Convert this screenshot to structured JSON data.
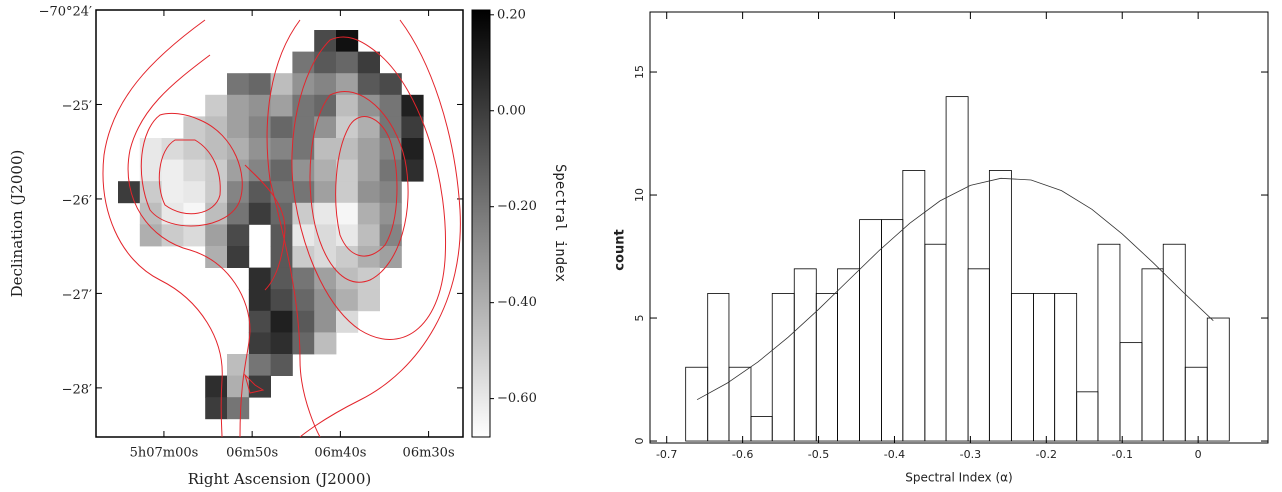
{
  "chart_data": [
    {
      "type": "heatmap",
      "xlabel": "Right Ascension (J2000)",
      "ylabel": "Declination (J2000)",
      "xlim": [
        67.7,
        26.1
      ],
      "xticks": [
        {
          "value": 60,
          "label": "5h07m00s"
        },
        {
          "value": 50,
          "label": "06m50s"
        },
        {
          "value": 40,
          "label": "06m40s"
        },
        {
          "value": 30,
          "label": "06m30s"
        }
      ],
      "ylim": [
        -28.52,
        -24
      ],
      "yticks": [
        {
          "value": -24,
          "label": "−70°24′"
        },
        {
          "value": -25,
          "label": "−25′"
        },
        {
          "value": -26,
          "label": "−26′"
        },
        {
          "value": -27,
          "label": "−27′"
        },
        {
          "value": -28,
          "label": "−28′"
        }
      ],
      "values": [
        [
          null,
          null,
          null,
          null,
          null,
          null,
          null,
          null,
          null,
          -0.05,
          0.15,
          null,
          null,
          null,
          null
        ],
        [
          null,
          null,
          null,
          null,
          null,
          null,
          null,
          null,
          -0.2,
          -0.1,
          -0.15,
          0.0,
          null,
          null,
          null
        ],
        [
          null,
          null,
          null,
          null,
          null,
          -0.2,
          -0.15,
          -0.45,
          -0.3,
          -0.25,
          -0.35,
          -0.1,
          -0.05,
          null,
          null
        ],
        [
          null,
          null,
          null,
          null,
          -0.5,
          -0.35,
          -0.3,
          -0.35,
          -0.2,
          -0.15,
          -0.45,
          -0.3,
          -0.2,
          0.1,
          null
        ],
        [
          null,
          null,
          null,
          -0.5,
          -0.45,
          -0.35,
          -0.25,
          -0.15,
          -0.2,
          -0.3,
          -0.5,
          -0.4,
          -0.2,
          0.0,
          null
        ],
        [
          null,
          -0.6,
          -0.55,
          -0.5,
          -0.45,
          -0.4,
          -0.3,
          -0.25,
          -0.2,
          -0.45,
          -0.45,
          -0.35,
          -0.25,
          0.1,
          null
        ],
        [
          null,
          -0.6,
          -0.62,
          -0.55,
          -0.5,
          -0.35,
          -0.25,
          -0.15,
          -0.3,
          -0.4,
          -0.5,
          -0.35,
          -0.2,
          0.05,
          null
        ],
        [
          0.0,
          -0.5,
          -0.62,
          -0.6,
          -0.5,
          -0.25,
          -0.1,
          -0.2,
          -0.2,
          -0.35,
          -0.5,
          -0.3,
          -0.25,
          null,
          null
        ],
        [
          null,
          -0.45,
          -0.6,
          -0.65,
          -0.45,
          -0.2,
          0.0,
          -0.15,
          -0.5,
          -0.6,
          -0.65,
          -0.4,
          -0.3,
          null,
          null
        ],
        [
          null,
          -0.4,
          -0.5,
          -0.55,
          -0.35,
          -0.05,
          null,
          -0.1,
          -0.6,
          -0.55,
          -0.6,
          -0.45,
          -0.25,
          null,
          null
        ],
        [
          null,
          null,
          null,
          null,
          -0.4,
          0.0,
          null,
          -0.1,
          -0.5,
          -0.55,
          -0.5,
          -0.4,
          -0.35,
          null,
          null
        ],
        [
          null,
          null,
          null,
          null,
          null,
          null,
          0.05,
          -0.1,
          -0.2,
          -0.35,
          -0.45,
          -0.5,
          null,
          null,
          null
        ],
        [
          null,
          null,
          null,
          null,
          null,
          null,
          0.05,
          -0.05,
          -0.15,
          -0.3,
          -0.4,
          -0.5,
          null,
          null,
          null
        ],
        [
          null,
          null,
          null,
          null,
          null,
          null,
          -0.05,
          0.1,
          -0.1,
          -0.3,
          -0.55,
          null,
          null,
          null,
          null
        ],
        [
          null,
          null,
          null,
          null,
          null,
          null,
          0.0,
          0.05,
          -0.15,
          -0.45,
          null,
          null,
          null,
          null,
          null
        ],
        [
          null,
          null,
          null,
          null,
          null,
          -0.45,
          -0.2,
          -0.1,
          null,
          null,
          null,
          null,
          null,
          null,
          null
        ],
        [
          null,
          null,
          null,
          null,
          0.05,
          -0.4,
          0.0,
          null,
          null,
          null,
          null,
          null,
          null,
          null,
          null
        ],
        [
          null,
          null,
          null,
          null,
          0.0,
          -0.2,
          null,
          null,
          null,
          null,
          null,
          null,
          null,
          null,
          null
        ]
      ],
      "colorbar": {
        "label": "Spectral index",
        "lim": [
          -0.68,
          0.21
        ],
        "ticks": [
          {
            "value": 0.2,
            "label": "0.20"
          },
          {
            "value": 0.0,
            "label": "0.00"
          },
          {
            "value": -0.2,
            "label": "−0.20"
          },
          {
            "value": -0.4,
            "label": "−0.40"
          },
          {
            "value": -0.6,
            "label": "−0.60"
          }
        ]
      },
      "contour_color": "#e3242b"
    },
    {
      "type": "histogram",
      "xlabel": "Spectral Index (α)",
      "ylabel": "count",
      "bins": [
        -0.675,
        -0.646,
        -0.618,
        -0.589,
        -0.561,
        -0.532,
        -0.503,
        -0.475,
        -0.446,
        -0.417,
        -0.389,
        -0.36,
        -0.332,
        -0.303,
        -0.275,
        -0.246,
        -0.217,
        -0.189,
        -0.16,
        -0.132,
        -0.103,
        -0.074,
        -0.046,
        -0.017,
        0.012,
        0.041
      ],
      "values": [
        3,
        6,
        3,
        1,
        6,
        7,
        6,
        7,
        9,
        9,
        11,
        8,
        14,
        7,
        11,
        6,
        6,
        6,
        2,
        8,
        4,
        7,
        8,
        3,
        5
      ],
      "color": "#000000",
      "fit": {
        "x": [
          -0.66,
          -0.62,
          -0.58,
          -0.54,
          -0.5,
          -0.46,
          -0.42,
          -0.38,
          -0.34,
          -0.3,
          -0.26,
          -0.22,
          -0.18,
          -0.14,
          -0.1,
          -0.06,
          -0.02,
          0.02
        ],
        "values": [
          1.68,
          2.36,
          3.21,
          4.22,
          5.35,
          6.55,
          7.75,
          8.85,
          9.76,
          10.39,
          10.68,
          10.61,
          10.18,
          9.42,
          8.42,
          7.27,
          6.06,
          4.89
        ]
      },
      "xlim": [
        -0.722,
        0.092
      ],
      "xticks": [
        -0.7,
        -0.6,
        -0.5,
        -0.4,
        -0.3,
        -0.2,
        -0.1,
        0
      ],
      "ylim": [
        -0.08,
        17.44
      ],
      "yticks": [
        0,
        5,
        10,
        15
      ]
    }
  ]
}
